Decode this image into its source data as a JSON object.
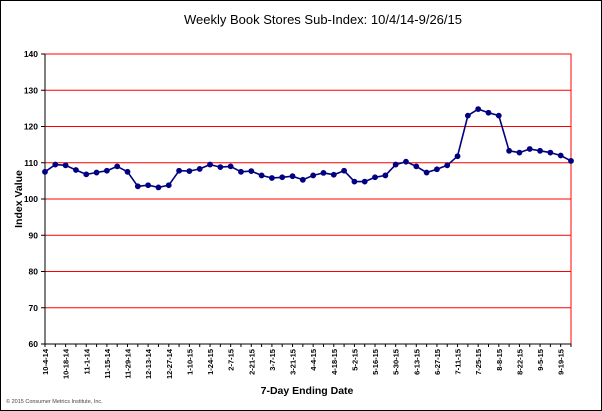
{
  "chart_data": {
    "type": "line",
    "title": "Weekly Book Stores Sub-Index: 10/4/14-9/26/15",
    "xlabel": "7-Day Ending Date",
    "ylabel": "Index Value",
    "ylim": [
      60,
      140
    ],
    "yticks": [
      60,
      70,
      80,
      90,
      100,
      110,
      120,
      130,
      140
    ],
    "grid": true,
    "colors": {
      "line": "#000080",
      "marker": "#000080",
      "grid": "#ff0000",
      "plot_border": "#808080"
    },
    "x": [
      "10-4-14",
      "10-11-14",
      "10-18-14",
      "10-25-14",
      "11-1-14",
      "11-8-14",
      "11-15-14",
      "11-22-14",
      "11-29-14",
      "12-6-14",
      "12-13-14",
      "12-20-14",
      "12-27-14",
      "1-3-15",
      "1-10-15",
      "1-17-15",
      "1-24-15",
      "1-31-15",
      "2-7-15",
      "2-14-15",
      "2-21-15",
      "2-28-15",
      "3-7-15",
      "3-14-15",
      "3-21-15",
      "3-28-15",
      "4-4-15",
      "4-11-15",
      "4-18-15",
      "4-25-15",
      "5-2-15",
      "5-9-15",
      "5-16-15",
      "5-23-15",
      "5-30-15",
      "6-6-15",
      "6-13-15",
      "6-20-15",
      "6-27-15",
      "7-4-15",
      "7-11-15",
      "7-18-15",
      "7-25-15",
      "8-1-15",
      "8-8-15",
      "8-15-15",
      "8-22-15",
      "8-29-15",
      "9-5-15",
      "9-12-15",
      "9-19-15",
      "9-26-15"
    ],
    "x_tick_labels": [
      "10-4-14",
      "10-18-14",
      "11-1-14",
      "11-15-14",
      "11-29-14",
      "12-13-14",
      "12-27-14",
      "1-10-15",
      "1-24-15",
      "2-7-15",
      "2-21-15",
      "3-7-15",
      "3-21-15",
      "4-4-15",
      "4-18-15",
      "5-2-15",
      "5-16-15",
      "5-30-15",
      "6-13-15",
      "6-27-15",
      "7-11-15",
      "7-25-15",
      "8-8-15",
      "8-22-15",
      "9-5-15",
      "9-19-15"
    ],
    "series": [
      {
        "values": [
          107.5,
          109.5,
          109.3,
          108.0,
          106.8,
          107.3,
          107.8,
          109.0,
          107.5,
          103.5,
          103.8,
          103.2,
          103.8,
          107.8,
          107.7,
          108.3,
          109.5,
          108.8,
          109.0,
          107.5,
          107.7,
          106.5,
          105.8,
          106.0,
          106.3,
          105.3,
          106.5,
          107.2,
          106.7,
          107.8,
          104.8,
          104.8,
          106.0,
          106.5,
          109.5,
          110.3,
          109.0,
          107.3,
          108.2,
          109.3,
          111.8,
          123.0,
          124.8,
          123.8,
          123.0,
          113.3,
          112.8,
          113.8,
          113.3,
          112.8,
          112.0,
          110.5
        ]
      }
    ]
  },
  "footer": {
    "copyright": "© 2015 Consumer Metrics Institute, Inc."
  }
}
